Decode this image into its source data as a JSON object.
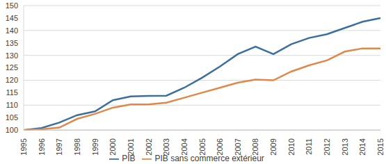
{
  "chart_data": {
    "type": "line",
    "categories": [
      "1995",
      "1996",
      "1997",
      "1998",
      "1999",
      "2000",
      "2001",
      "2002",
      "2003",
      "2004",
      "2005",
      "2006",
      "2007",
      "2008",
      "2009",
      "2010",
      "2011",
      "2012",
      "2013",
      "2014",
      "2015"
    ],
    "series": [
      {
        "name": "PIB",
        "color": "#3a6f9e",
        "values": [
          100,
          100.8,
          103,
          106,
          107.5,
          112,
          113.5,
          113.7,
          113.8,
          117,
          121,
          125.5,
          130.5,
          133.5,
          130.5,
          134.5,
          137,
          138.5,
          141,
          143.5,
          145
        ]
      },
      {
        "name": "PIB sans commerce extérieur",
        "color": "#e0884a",
        "values": [
          100,
          100.3,
          101,
          104.5,
          106.5,
          109,
          110.3,
          110.3,
          111,
          113,
          115,
          117,
          119,
          120.3,
          120,
          123.5,
          126,
          128,
          131.5,
          132.8,
          132.8
        ]
      }
    ],
    "ylim": [
      100,
      150
    ],
    "yticks": [
      100,
      105,
      110,
      115,
      120,
      125,
      130,
      135,
      140,
      145,
      150
    ],
    "grid": true,
    "legend": "bottom"
  }
}
